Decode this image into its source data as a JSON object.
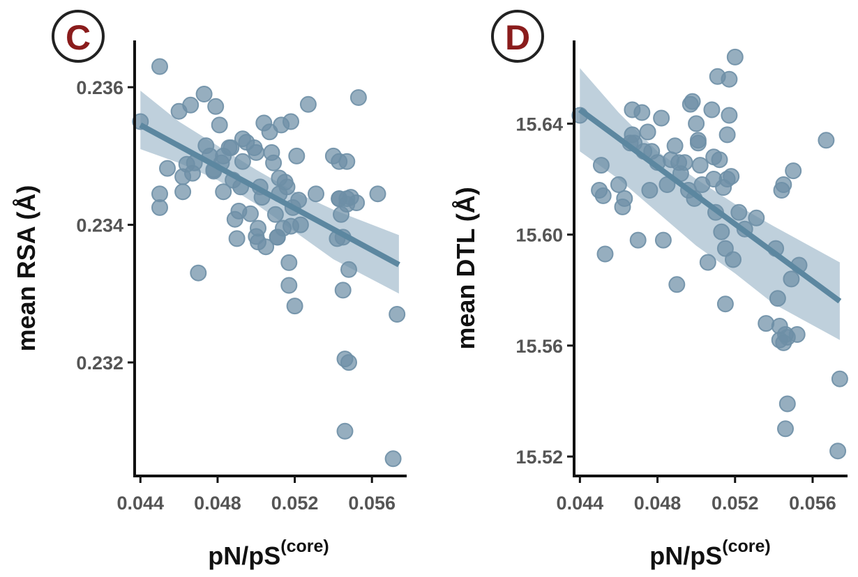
{
  "colors": {
    "points": "#6e8fa6",
    "fit_line": "#5c87a0",
    "confidence_band": "#a9c0d0",
    "axis": "#111111",
    "tick_label": "#555555",
    "panel_letter": "#8a1c1c"
  },
  "chart_data": [
    {
      "panel_label": "C",
      "type": "scatter",
      "xlabel": "pN/pS",
      "xlabel_superscript": "(core)",
      "ylabel": "mean RSA (Å)",
      "xlim": [
        0.0437,
        0.0578
      ],
      "ylim": [
        0.23035,
        0.23668
      ],
      "x_ticks": [
        0.044,
        0.048,
        0.052,
        0.056
      ],
      "x_tick_labels": [
        "0.044",
        "0.048",
        "0.052",
        "0.056"
      ],
      "y_ticks": [
        0.232,
        0.234,
        0.236
      ],
      "y_tick_labels": [
        "0.232",
        "0.234",
        "0.236"
      ],
      "grid": false,
      "legend": "none",
      "fit_line": {
        "x": [
          0.044,
          0.0574
        ],
        "y": [
          0.23545,
          0.23342
        ]
      },
      "confidence_band": {
        "x": [
          0.044,
          0.046,
          0.048,
          0.05,
          0.052,
          0.054,
          0.0574
        ],
        "upper": [
          0.23595,
          0.2355,
          0.23515,
          0.2348,
          0.23448,
          0.23422,
          0.23385
        ],
        "lower": [
          0.2351,
          0.2349,
          0.23465,
          0.2343,
          0.2339,
          0.2335,
          0.233
        ]
      },
      "points": {
        "x": [
          0.045,
          0.044,
          0.045,
          0.045,
          0.0454,
          0.046,
          0.0462,
          0.0462,
          0.0464,
          0.0466,
          0.0467,
          0.0468,
          0.047,
          0.0473,
          0.0474,
          0.0476,
          0.0478,
          0.0478,
          0.0479,
          0.0481,
          0.0482,
          0.0483,
          0.0483,
          0.0486,
          0.0487,
          0.0488,
          0.0489,
          0.049,
          0.0491,
          0.0492,
          0.0493,
          0.0493,
          0.0495,
          0.0497,
          0.0499,
          0.05,
          0.05,
          0.0501,
          0.0501,
          0.0502,
          0.0503,
          0.0504,
          0.0505,
          0.0507,
          0.0508,
          0.0509,
          0.051,
          0.0511,
          0.0511,
          0.0512,
          0.0512,
          0.0513,
          0.0514,
          0.0515,
          0.0516,
          0.0517,
          0.0517,
          0.0518,
          0.0518,
          0.0519,
          0.052,
          0.0521,
          0.0522,
          0.0523,
          0.0527,
          0.0531,
          0.054,
          0.0542,
          0.0543,
          0.0543,
          0.0543,
          0.0544,
          0.0545,
          0.0545,
          0.0546,
          0.0546,
          0.0547,
          0.0547,
          0.0547,
          0.0548,
          0.0548,
          0.0549,
          0.0552,
          0.0553,
          0.0563,
          0.0571,
          0.0573
        ],
        "y": [
          0.2363,
          0.2355,
          0.23445,
          0.23425,
          0.23482,
          0.23565,
          0.2347,
          0.23448,
          0.23488,
          0.23574,
          0.23475,
          0.2349,
          0.2333,
          0.2359,
          0.23515,
          0.235,
          0.2348,
          0.23478,
          0.23572,
          0.23545,
          0.2349,
          0.235,
          0.23448,
          0.23512,
          0.23512,
          0.23465,
          0.23408,
          0.2338,
          0.2342,
          0.23455,
          0.23525,
          0.23492,
          0.2352,
          0.23416,
          0.23512,
          0.23505,
          0.23383,
          0.23395,
          0.23375,
          0.23455,
          0.2344,
          0.23548,
          0.23368,
          0.23535,
          0.23505,
          0.2349,
          0.23415,
          0.23382,
          0.23382,
          0.23468,
          0.23445,
          0.23545,
          0.23395,
          0.23462,
          0.23455,
          0.23312,
          0.23345,
          0.23398,
          0.2355,
          0.23425,
          0.23282,
          0.235,
          0.23436,
          0.234,
          0.23575,
          0.23445,
          0.235,
          0.2338,
          0.23492,
          0.23438,
          0.23438,
          0.23415,
          0.23305,
          0.23382,
          0.23205,
          0.231,
          0.2343,
          0.23492,
          0.23438,
          0.23335,
          0.232,
          0.2344,
          0.23432,
          0.23585,
          0.23445,
          0.2306,
          0.2327
        ]
      }
    },
    {
      "panel_label": "D",
      "type": "scatter",
      "xlabel": "pN/pS",
      "xlabel_superscript": "(core)",
      "ylabel": "mean DTL (Å)",
      "xlim": [
        0.0437,
        0.0578
      ],
      "ylim": [
        15.513,
        15.67
      ],
      "x_ticks": [
        0.044,
        0.048,
        0.052,
        0.056
      ],
      "x_tick_labels": [
        "0.044",
        "0.048",
        "0.052",
        "0.056"
      ],
      "y_ticks": [
        15.52,
        15.56,
        15.6,
        15.64
      ],
      "y_tick_labels": [
        "15.52",
        "15.56",
        "15.60",
        "15.64"
      ],
      "grid": false,
      "legend": "none",
      "fit_line": {
        "x": [
          0.044,
          0.0574
        ],
        "y": [
          15.645,
          15.576
        ]
      },
      "confidence_band": {
        "x": [
          0.044,
          0.046,
          0.048,
          0.05,
          0.052,
          0.054,
          0.0574
        ],
        "upper": [
          15.66,
          15.644,
          15.63,
          15.62,
          15.611,
          15.603,
          15.59
        ],
        "lower": [
          15.63,
          15.62,
          15.608,
          15.596,
          15.586,
          15.575,
          15.562
        ]
      },
      "points": {
        "x": [
          0.044,
          0.0451,
          0.045,
          0.0452,
          0.0453,
          0.046,
          0.0462,
          0.0463,
          0.0466,
          0.0467,
          0.0467,
          0.0468,
          0.047,
          0.0472,
          0.0473,
          0.0475,
          0.0476,
          0.0477,
          0.048,
          0.0482,
          0.0483,
          0.0485,
          0.0487,
          0.0489,
          0.049,
          0.0491,
          0.0492,
          0.0494,
          0.0496,
          0.0497,
          0.0498,
          0.0499,
          0.05,
          0.0501,
          0.0501,
          0.0502,
          0.0503,
          0.0506,
          0.0508,
          0.0509,
          0.0509,
          0.051,
          0.0511,
          0.0512,
          0.0513,
          0.0514,
          0.0515,
          0.0515,
          0.0516,
          0.0516,
          0.0517,
          0.0517,
          0.0518,
          0.0519,
          0.052,
          0.0522,
          0.0525,
          0.0531,
          0.0536,
          0.0541,
          0.0542,
          0.0543,
          0.0543,
          0.0544,
          0.0545,
          0.0545,
          0.0546,
          0.0546,
          0.0547,
          0.0547,
          0.0549,
          0.055,
          0.0552,
          0.0553,
          0.0567,
          0.0573,
          0.0574
        ],
        "y": [
          15.643,
          15.625,
          15.616,
          15.614,
          15.593,
          15.618,
          15.61,
          15.613,
          15.633,
          15.645,
          15.636,
          15.633,
          15.598,
          15.644,
          15.63,
          15.637,
          15.616,
          15.63,
          15.626,
          15.642,
          15.598,
          15.618,
          15.627,
          15.632,
          15.582,
          15.626,
          15.622,
          15.626,
          15.616,
          15.647,
          15.648,
          15.613,
          15.64,
          15.634,
          15.633,
          15.625,
          15.618,
          15.59,
          15.645,
          15.62,
          15.628,
          15.608,
          15.657,
          15.627,
          15.601,
          15.617,
          15.575,
          15.595,
          15.636,
          15.62,
          15.656,
          15.643,
          15.621,
          15.591,
          15.664,
          15.608,
          15.602,
          15.606,
          15.568,
          15.595,
          15.577,
          15.562,
          15.567,
          15.616,
          15.561,
          15.618,
          15.53,
          15.564,
          15.563,
          15.539,
          15.584,
          15.623,
          15.564,
          15.589,
          15.634,
          15.522,
          15.548
        ]
      }
    }
  ]
}
